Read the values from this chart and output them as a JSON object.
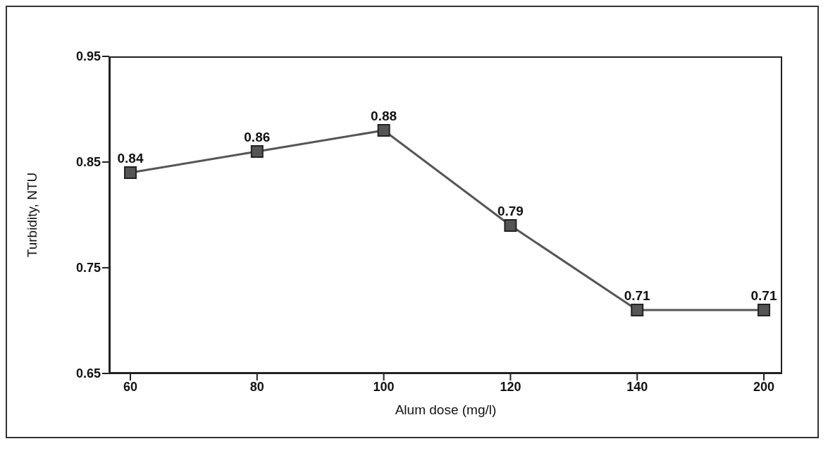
{
  "chart_data": {
    "type": "line",
    "xlabel": "Alum dose (mg/l)",
    "ylabel": "Turbidity, NTU",
    "categories": [
      "60",
      "80",
      "100",
      "120",
      "140",
      "200"
    ],
    "series": [
      {
        "color": "#555555",
        "values": [
          0.84,
          0.86,
          0.88,
          0.79,
          0.71,
          0.71
        ]
      }
    ],
    "ylim": [
      0.65,
      0.95
    ],
    "yticks": [
      0.65,
      0.75,
      0.85,
      0.95
    ],
    "grid": false,
    "legend": false,
    "marker": "square",
    "line_style": "solid",
    "data_labels": true
  }
}
